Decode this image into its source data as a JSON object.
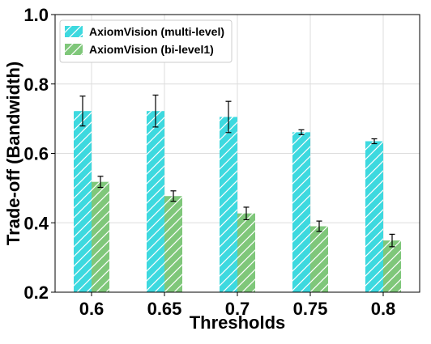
{
  "chart_data": {
    "type": "bar",
    "xlabel": "Thresholds",
    "ylabel": "Trade-off (Bandwidth)",
    "categories": [
      "0.6",
      "0.65",
      "0.7",
      "0.75",
      "0.8"
    ],
    "ylim": [
      0.2,
      1.0
    ],
    "yticks": [
      "0.2",
      "0.4",
      "0.6",
      "0.8",
      "1.0"
    ],
    "grid": true,
    "legend_position": "top-left",
    "series": [
      {
        "name": "AxiomVision (multi-level)",
        "color": "#3dd9df",
        "hatch": "diagonal",
        "values": [
          0.722,
          0.722,
          0.705,
          0.661,
          0.635
        ],
        "errors": [
          0.043,
          0.046,
          0.045,
          0.007,
          0.007
        ]
      },
      {
        "name": "AxiomVision (bi-level1)",
        "color": "#7fc77a",
        "hatch": "diagonal",
        "values": [
          0.518,
          0.477,
          0.427,
          0.39,
          0.349
        ],
        "errors": [
          0.016,
          0.015,
          0.018,
          0.015,
          0.018
        ]
      }
    ]
  }
}
